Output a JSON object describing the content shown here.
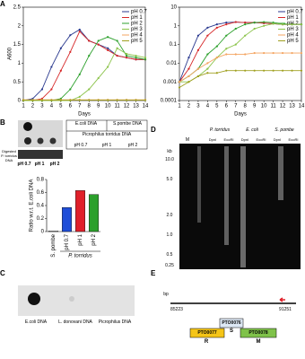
{
  "panel_labels": [
    "A",
    "B",
    "C",
    "D",
    "E"
  ],
  "chart_data": [
    {
      "type": "line",
      "y_label": "A600",
      "x_label": "Days",
      "scale": "linear",
      "x": [
        1,
        2,
        3,
        4,
        5,
        6,
        7,
        8,
        9,
        10,
        11,
        12,
        13,
        14
      ],
      "xlim": [
        1,
        14
      ],
      "xticks": [
        1,
        2,
        3,
        4,
        5,
        6,
        7,
        8,
        9,
        10,
        11,
        12,
        13,
        14
      ],
      "ylim": [
        0,
        2.5
      ],
      "yticks": [
        0,
        0.5,
        1,
        1.5,
        2,
        2.5
      ],
      "series": [
        {
          "name": "pH 0.7",
          "color": "#2b3a8f",
          "values": [
            0,
            0.05,
            0.3,
            0.9,
            1.4,
            1.75,
            1.9,
            1.6,
            1.5,
            1.4,
            1.2,
            1.15,
            1.1,
            1.1
          ]
        },
        {
          "name": "pH 1",
          "color": "#d62728",
          "values": [
            0,
            0,
            0.05,
            0.3,
            0.8,
            1.3,
            1.85,
            1.6,
            1.5,
            1.35,
            1.2,
            1.15,
            1.1,
            1.1
          ]
        },
        {
          "name": "pH 2",
          "color": "#2ca02c",
          "values": [
            0,
            0,
            0,
            0,
            0.05,
            0.3,
            0.7,
            1.2,
            1.6,
            1.7,
            1.6,
            1.2,
            1.15,
            1.1
          ]
        },
        {
          "name": "pH 3",
          "color": "#8bc34a",
          "values": [
            0,
            0,
            0,
            0,
            0,
            0,
            0.1,
            0.3,
            0.6,
            0.9,
            1.4,
            1.25,
            1.2,
            1.15
          ]
        },
        {
          "name": "pH 4",
          "color": "#f4a460",
          "values": [
            0.02,
            0.02,
            0.02,
            0.02,
            0.02,
            0.02,
            0.02,
            0.02,
            0.02,
            0.02,
            0.02,
            0.02,
            0.02,
            0.02
          ]
        },
        {
          "name": "pH 5",
          "color": "#a0a020",
          "values": [
            0.01,
            0.01,
            0.01,
            0.01,
            0.01,
            0.01,
            0.01,
            0.01,
            0.01,
            0.01,
            0.01,
            0.01,
            0.01,
            0.01
          ]
        }
      ]
    },
    {
      "type": "line",
      "x_label": "Days",
      "scale": "log",
      "x": [
        1,
        2,
        3,
        4,
        5,
        6,
        7,
        8,
        9,
        10,
        11,
        12,
        13,
        14
      ],
      "xlim": [
        1,
        14
      ],
      "xticks": [
        1,
        2,
        3,
        4,
        5,
        6,
        7,
        8,
        9,
        10,
        11,
        12,
        13,
        14
      ],
      "ylim": [
        0.0001,
        10
      ],
      "yticks": [
        0.0001,
        0.001,
        0.01,
        0.1,
        1,
        10
      ],
      "series": [
        {
          "name": "pH 0.7",
          "color": "#2b3a8f",
          "values": [
            0.001,
            0.02,
            0.3,
            0.8,
            1.2,
            1.5,
            1.6,
            1.5,
            1.5,
            1.4,
            1.3,
            1.2,
            1.2,
            1.2
          ]
        },
        {
          "name": "pH 1",
          "color": "#d62728",
          "values": [
            0.001,
            0.005,
            0.05,
            0.3,
            0.8,
            1.2,
            1.6,
            1.5,
            1.5,
            1.4,
            1.3,
            1.2,
            1.2,
            1.2
          ]
        },
        {
          "name": "pH 2",
          "color": "#2ca02c",
          "values": [
            0.001,
            0.002,
            0.005,
            0.03,
            0.08,
            0.3,
            0.7,
            1.2,
            1.5,
            1.6,
            1.5,
            1.3,
            1.2,
            1.2
          ]
        },
        {
          "name": "pH 3",
          "color": "#8bc34a",
          "values": [
            0.001,
            0.001,
            0.002,
            0.005,
            0.02,
            0.06,
            0.1,
            0.3,
            0.7,
            1,
            1.3,
            1.2,
            1.2,
            1.2
          ]
        },
        {
          "name": "pH 4",
          "color": "#f4a460",
          "values": [
            0.001,
            0.002,
            0.005,
            0.01,
            0.02,
            0.03,
            0.03,
            0.03,
            0.035,
            0.035,
            0.035,
            0.035,
            0.035,
            0.035
          ]
        },
        {
          "name": "pH 5",
          "color": "#a0a020",
          "values": [
            0.0005,
            0.001,
            0.002,
            0.003,
            0.003,
            0.004,
            0.004,
            0.004,
            0.004,
            0.004,
            0.004,
            0.004,
            0.004,
            0.004
          ]
        }
      ]
    },
    {
      "type": "bar",
      "y_label": "Ratio w.r.t. E.coli DNA",
      "group_label": "P. torridus",
      "categories": [
        "S. pombe",
        "pH 0.7",
        "pH 1",
        "pH 2"
      ],
      "values": [
        0.01,
        0.37,
        0.63,
        0.57
      ],
      "colors": [
        "#ffffff",
        "#1f4ed8",
        "#e0202a",
        "#2ca02c"
      ],
      "ylim": [
        0,
        0.8
      ],
      "yticks": [
        0,
        0.2,
        0.4,
        0.6,
        0.8
      ]
    }
  ],
  "blot_b": {
    "ecoli": "E.coli DNA",
    "spombe": "S.pombe DNA",
    "ptorridus": "Picrophilus torridus DNA",
    "lanes": [
      "pH 0.7",
      "pH 1",
      "pH 2"
    ],
    "digested": "Digested P. torridus DNA",
    "digested_lanes": [
      "pH 0.7",
      "pH 1",
      "pH 2"
    ]
  },
  "blot_c": {
    "labels": [
      "E.coli DNA",
      "L. donovani DNA",
      "Picrophilus DNA"
    ]
  },
  "gel_d": {
    "kb": "kb",
    "marker": "M",
    "groups": [
      "P. torridus",
      "E. coli",
      "S. pombe"
    ],
    "enzymes": [
      "DpnI",
      "EcoRI",
      "DpnI",
      "EcoRI",
      "DpnI",
      "EcoRI"
    ],
    "sizes": [
      "10.0",
      "5.0",
      "2.0",
      "1.0",
      "0.5",
      "0.25"
    ]
  },
  "diagram_e": {
    "bp": "bp",
    "start": "85223",
    "end": "91251",
    "genes": [
      "PTO0076",
      "PTO0077",
      "PTO0078"
    ],
    "primers": [
      "R",
      "S",
      "M"
    ]
  }
}
